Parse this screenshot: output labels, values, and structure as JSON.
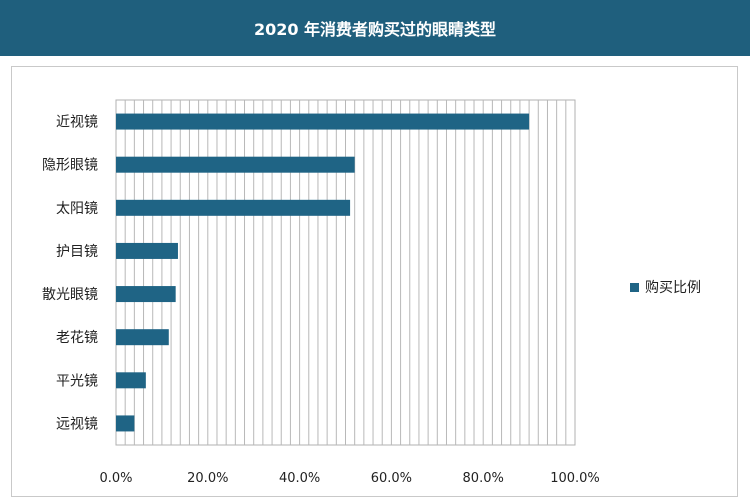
{
  "header": {
    "title": "2020 年消费者购买过的眼睛类型"
  },
  "colors": {
    "header_bg": "#1f5f7d",
    "bar": "#1f6485",
    "grid": "#b8b8b8"
  },
  "chart_data": {
    "type": "bar",
    "orientation": "horizontal",
    "title": "",
    "categories": [
      "近视镜",
      "隐形眼镜",
      "太阳镜",
      "护目镜",
      "散光眼镜",
      "老花镜",
      "平光镜",
      "远视镜"
    ],
    "series": [
      {
        "name": "购买比例",
        "values": [
          0.9,
          0.52,
          0.51,
          0.135,
          0.13,
          0.115,
          0.065,
          0.04
        ]
      }
    ],
    "xlim": [
      0,
      1.0
    ],
    "x_ticks": [
      "0.0%",
      "20.0%",
      "40.0%",
      "60.0%",
      "80.0%",
      "100.0%"
    ],
    "grid": true,
    "legend": "right"
  }
}
